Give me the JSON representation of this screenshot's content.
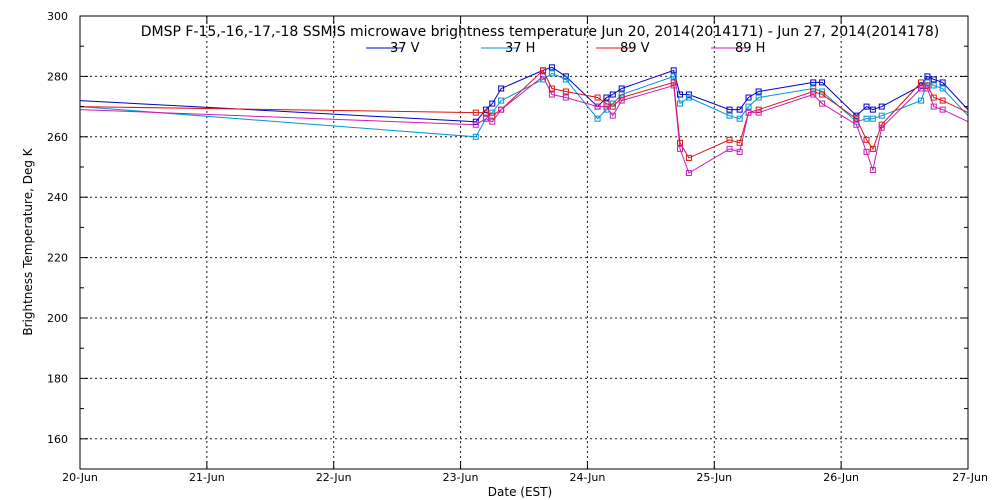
{
  "chart_data": {
    "type": "line",
    "title": "DMSP F-15,-16,-17,-18 SSMIS microwave brightness temperature Jun 20, 2014(2014171) - Jun 27, 2014(2014178)",
    "xlabel": "Date (EST)",
    "ylabel": "Brightness Temperature, Deg K",
    "xlim": [
      20,
      27
    ],
    "ylim": [
      150,
      300
    ],
    "x_ticks": [
      20,
      21,
      22,
      23,
      24,
      25,
      26,
      27
    ],
    "x_tick_labels": [
      "20-Jun",
      "21-Jun",
      "22-Jun",
      "23-Jun",
      "24-Jun",
      "25-Jun",
      "26-Jun",
      "27-Jun"
    ],
    "y_ticks": [
      160,
      180,
      200,
      220,
      240,
      260,
      280,
      300
    ],
    "grid": true,
    "legend_position": "top-center",
    "series": [
      {
        "name": "37 V",
        "color": "#0000c8",
        "points": [
          [
            20.0,
            272
          ],
          [
            23.12,
            265
          ],
          [
            23.2,
            269
          ],
          [
            23.25,
            271
          ],
          [
            23.32,
            276
          ],
          [
            23.65,
            282
          ],
          [
            23.72,
            283
          ],
          [
            23.83,
            280
          ],
          [
            24.08,
            270
          ],
          [
            24.15,
            273
          ],
          [
            24.2,
            274
          ],
          [
            24.27,
            276
          ],
          [
            24.68,
            282
          ],
          [
            24.73,
            274
          ],
          [
            24.8,
            274
          ],
          [
            25.12,
            269
          ],
          [
            25.2,
            269
          ],
          [
            25.27,
            273
          ],
          [
            25.35,
            275
          ],
          [
            25.78,
            278
          ],
          [
            25.85,
            278
          ],
          [
            26.12,
            267
          ],
          [
            26.2,
            270
          ],
          [
            26.25,
            269
          ],
          [
            26.32,
            270
          ],
          [
            26.63,
            277
          ],
          [
            26.68,
            280
          ],
          [
            26.73,
            279
          ],
          [
            26.8,
            278
          ],
          [
            27.0,
            269
          ]
        ]
      },
      {
        "name": "37 H",
        "color": "#0096d2",
        "points": [
          [
            20.0,
            270
          ],
          [
            23.12,
            260
          ],
          [
            23.2,
            266
          ],
          [
            23.25,
            268
          ],
          [
            23.32,
            272
          ],
          [
            23.65,
            279
          ],
          [
            23.72,
            281
          ],
          [
            23.83,
            279
          ],
          [
            24.08,
            266
          ],
          [
            24.15,
            269
          ],
          [
            24.2,
            271
          ],
          [
            24.27,
            274
          ],
          [
            24.68,
            280
          ],
          [
            24.73,
            271
          ],
          [
            24.8,
            273
          ],
          [
            25.12,
            267
          ],
          [
            25.2,
            266
          ],
          [
            25.27,
            270
          ],
          [
            25.35,
            273
          ],
          [
            25.78,
            276
          ],
          [
            25.85,
            275
          ],
          [
            26.12,
            265
          ],
          [
            26.2,
            266
          ],
          [
            26.25,
            266
          ],
          [
            26.32,
            267
          ],
          [
            26.63,
            272
          ],
          [
            26.68,
            278
          ],
          [
            26.73,
            277
          ],
          [
            26.8,
            276
          ],
          [
            27.0,
            267
          ]
        ]
      },
      {
        "name": "89 V",
        "color": "#dc1414",
        "points": [
          [
            20.0,
            270
          ],
          [
            23.12,
            268
          ],
          [
            23.2,
            268
          ],
          [
            23.25,
            267
          ],
          [
            23.32,
            269
          ],
          [
            23.65,
            282
          ],
          [
            23.72,
            276
          ],
          [
            23.83,
            275
          ],
          [
            24.08,
            273
          ],
          [
            24.15,
            271
          ],
          [
            24.2,
            270
          ],
          [
            24.27,
            273
          ],
          [
            24.68,
            278
          ],
          [
            24.73,
            258
          ],
          [
            24.8,
            253
          ],
          [
            25.12,
            259
          ],
          [
            25.2,
            258
          ],
          [
            25.27,
            268
          ],
          [
            25.35,
            269
          ],
          [
            25.78,
            275
          ],
          [
            25.85,
            274
          ],
          [
            26.12,
            266
          ],
          [
            26.2,
            259
          ],
          [
            26.25,
            256
          ],
          [
            26.32,
            264
          ],
          [
            26.63,
            278
          ],
          [
            26.68,
            277
          ],
          [
            26.73,
            273
          ],
          [
            26.8,
            272
          ],
          [
            27.0,
            268
          ]
        ]
      },
      {
        "name": "89 H",
        "color": "#c81eb4",
        "points": [
          [
            20.0,
            269
          ],
          [
            23.12,
            264
          ],
          [
            23.2,
            266
          ],
          [
            23.25,
            265
          ],
          [
            23.32,
            269
          ],
          [
            23.65,
            280
          ],
          [
            23.72,
            274
          ],
          [
            23.83,
            273
          ],
          [
            24.08,
            270
          ],
          [
            24.15,
            270
          ],
          [
            24.2,
            267
          ],
          [
            24.27,
            272
          ],
          [
            24.68,
            277
          ],
          [
            24.73,
            256
          ],
          [
            24.8,
            248
          ],
          [
            25.12,
            256
          ],
          [
            25.2,
            255
          ],
          [
            25.27,
            268
          ],
          [
            25.35,
            268
          ],
          [
            25.78,
            274
          ],
          [
            25.85,
            271
          ],
          [
            26.12,
            264
          ],
          [
            26.2,
            255
          ],
          [
            26.25,
            249
          ],
          [
            26.32,
            263
          ],
          [
            26.63,
            276
          ],
          [
            26.68,
            276
          ],
          [
            26.73,
            270
          ],
          [
            26.8,
            269
          ],
          [
            27.0,
            265
          ]
        ]
      }
    ]
  }
}
